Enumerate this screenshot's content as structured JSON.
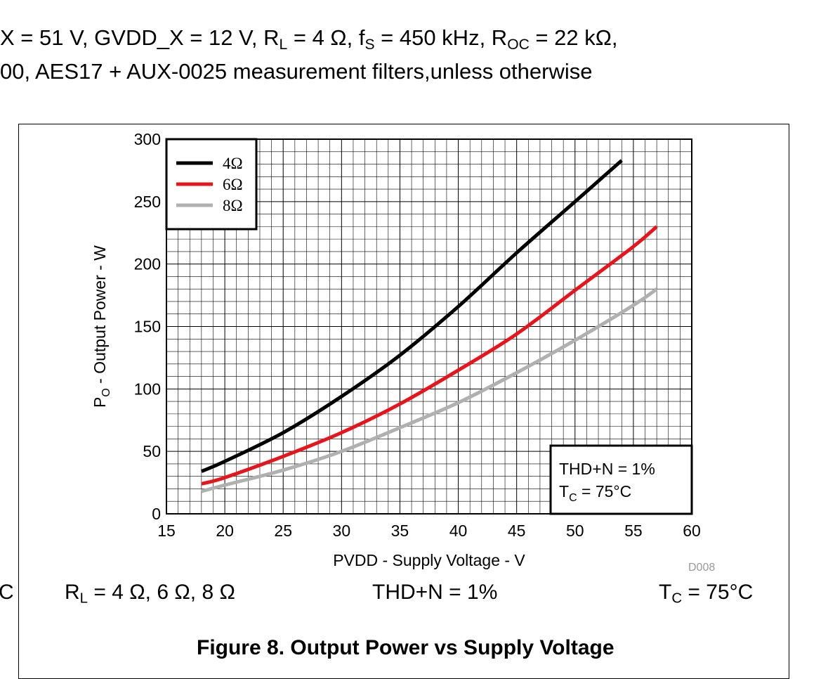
{
  "header": {
    "line1": [
      {
        "t": "X = 51 V, GVDD_X = 12 V, R"
      },
      {
        "sub": "L"
      },
      {
        "t": " = 4 Ω, f"
      },
      {
        "sub": "S"
      },
      {
        "t": " = 450 kHz, R"
      },
      {
        "sub": "OC"
      },
      {
        "t": " = 22 kΩ,"
      }
    ],
    "line2": "00, AES17 + AUX-0025 measurement filters,unless otherwise"
  },
  "left_fragment": "C",
  "chart_data": {
    "type": "line",
    "title": "",
    "xlabel": "PVDD - Supply Voltage - V",
    "ylabel": [
      "P",
      "O",
      " - Output Power - W"
    ],
    "xlim": [
      15,
      60
    ],
    "ylim": [
      0,
      300
    ],
    "xticks": [
      15,
      20,
      25,
      30,
      35,
      40,
      45,
      50,
      55,
      60
    ],
    "yticks": [
      0,
      50,
      100,
      150,
      200,
      250,
      300
    ],
    "grid": true,
    "legend_placement": "top-left",
    "series": [
      {
        "name": "4Ω",
        "color": "#000000",
        "x": [
          18,
          20,
          25,
          30,
          35,
          40,
          45,
          50,
          54
        ],
        "y": [
          34,
          42,
          65,
          94,
          127,
          166,
          209,
          250,
          283
        ]
      },
      {
        "name": "6Ω",
        "color": "#e8141b",
        "x": [
          18,
          20,
          25,
          30,
          35,
          40,
          45,
          50,
          55,
          57
        ],
        "y": [
          24,
          29,
          46,
          65,
          88,
          115,
          144,
          179,
          214,
          230
        ]
      },
      {
        "name": "8Ω",
        "color": "#b0b0b0",
        "x": [
          18,
          20,
          25,
          30,
          35,
          40,
          45,
          50,
          55,
          57
        ],
        "y": [
          18,
          23,
          35,
          50,
          69,
          89,
          113,
          139,
          167,
          180
        ]
      }
    ],
    "annotation": {
      "line1": "THD+N = 1%",
      "line2_parts": [
        "T",
        "C",
        " = 75°C"
      ]
    },
    "watermark": "D008"
  },
  "conditions": {
    "rl": [
      "R",
      "L",
      " = 4 Ω, 6 Ω, 8 Ω"
    ],
    "thd": "THD+N = 1%",
    "tc": [
      "T",
      "C",
      " = 75°C"
    ]
  },
  "caption": "Figure 8. Output Power vs Supply Voltage"
}
